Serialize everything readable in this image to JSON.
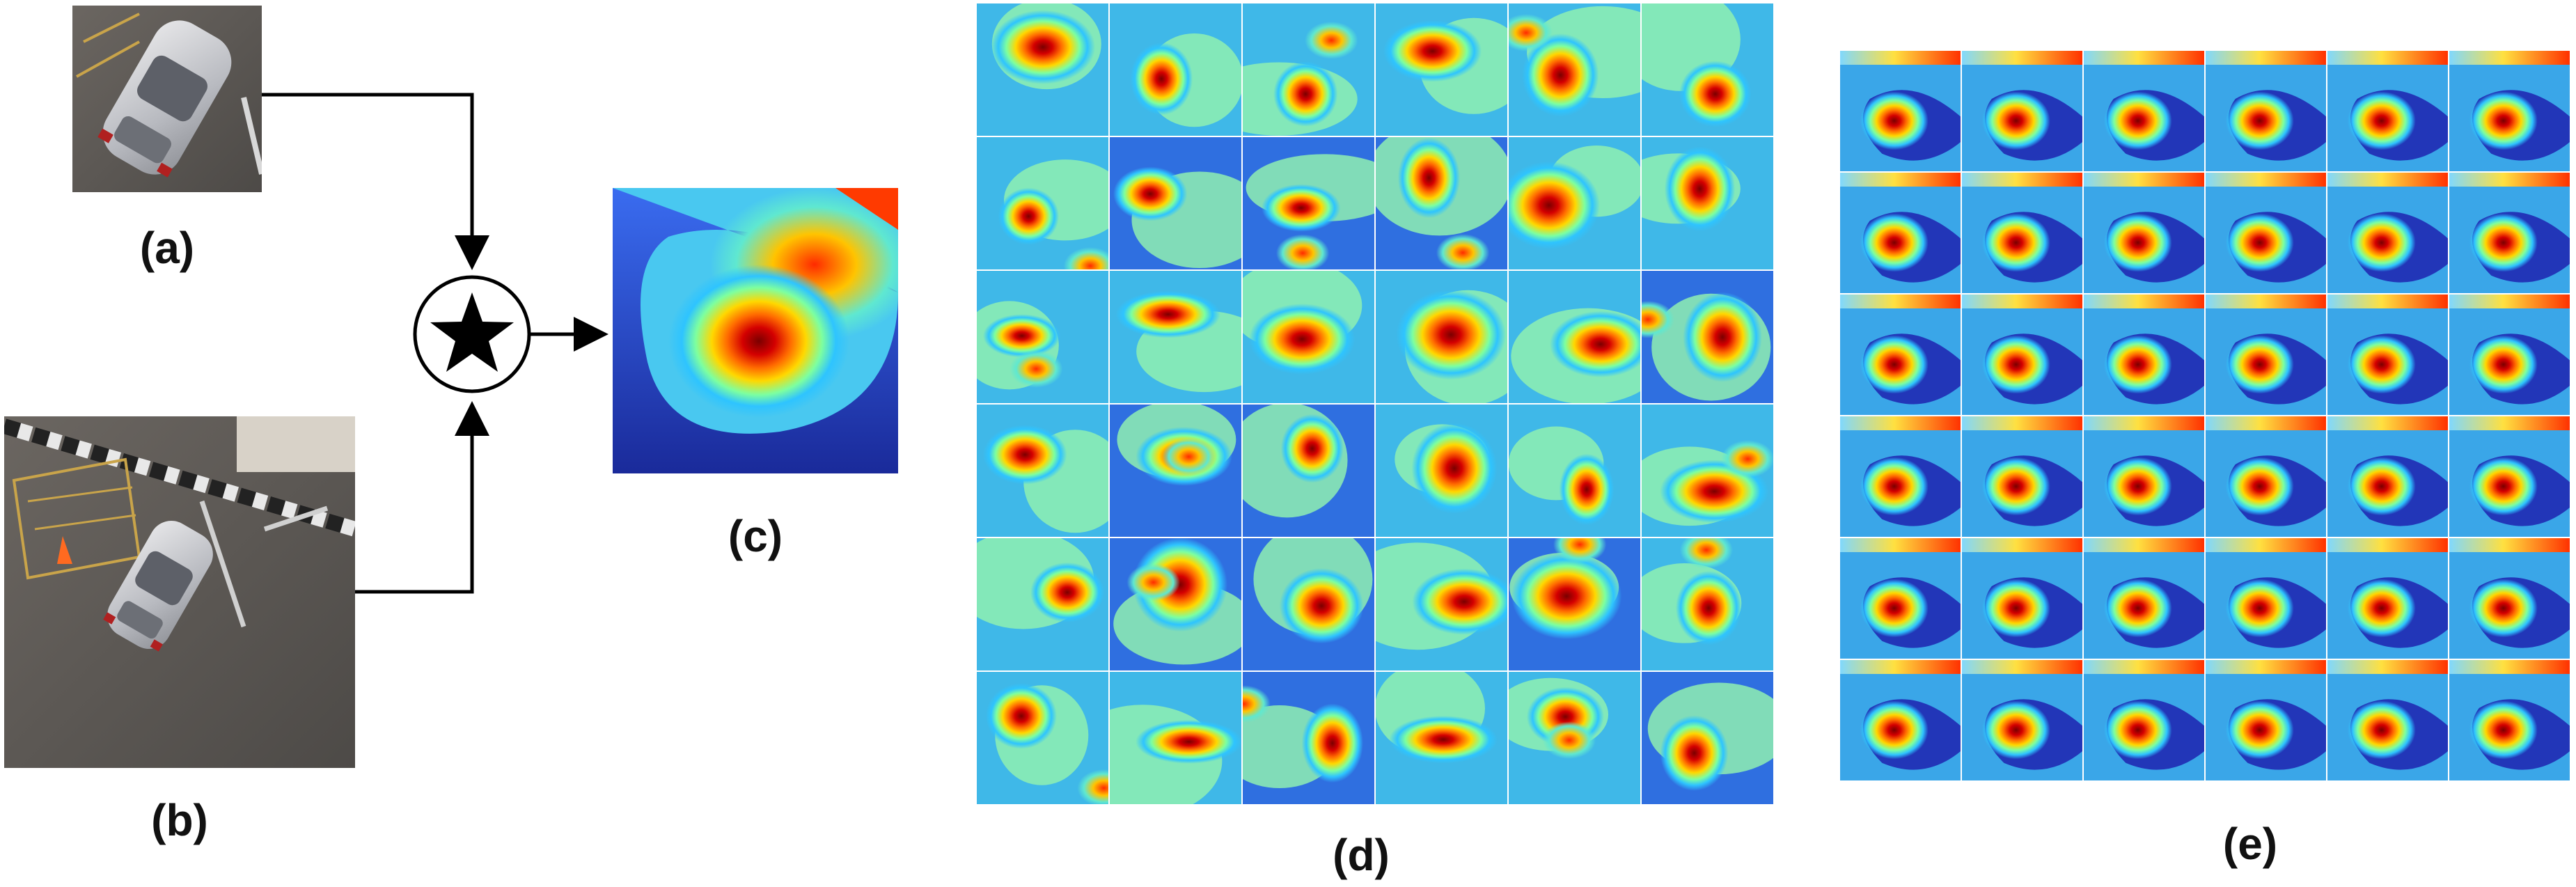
{
  "labels": {
    "a": "(a)",
    "b": "(b)",
    "c": "(c)",
    "d": "(d)",
    "e": "(e)"
  },
  "operator_icon": "star-correlation-icon",
  "grids": {
    "d_rows": 6,
    "d_cols": 6,
    "e_rows": 6,
    "e_cols": 6
  },
  "colormap": "jet"
}
